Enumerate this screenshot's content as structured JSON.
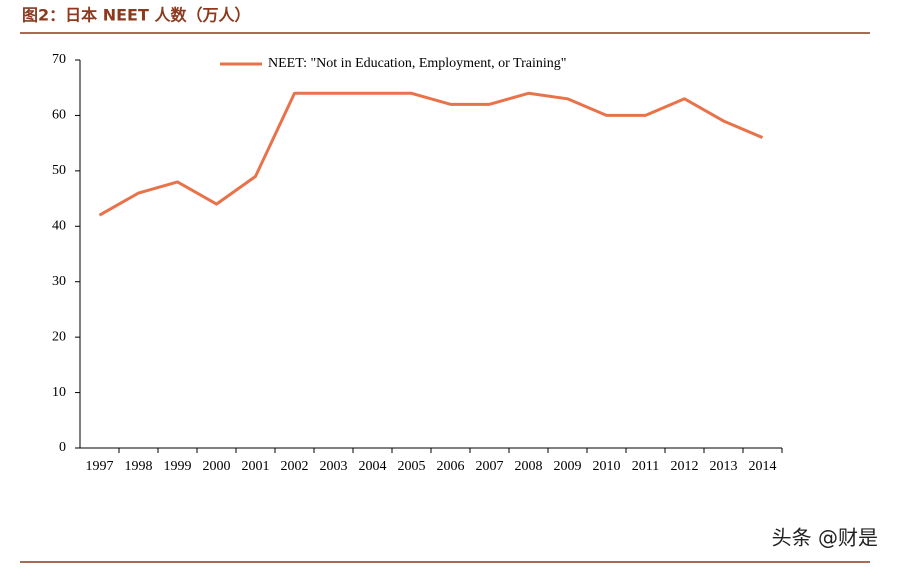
{
  "chart_data": {
    "type": "line",
    "title": "图2：日本 NEET 人数（万人）",
    "categories": [
      "1997",
      "1998",
      "1999",
      "2000",
      "2001",
      "2002",
      "2003",
      "2004",
      "2005",
      "2006",
      "2007",
      "2008",
      "2009",
      "2010",
      "2011",
      "2012",
      "2013",
      "2014"
    ],
    "series": [
      {
        "name": "NEET: \"Not in Education, Employment, or Training\"",
        "color": "#e8734a",
        "values": [
          42,
          46,
          48,
          44,
          49,
          64,
          64,
          64,
          64,
          62,
          62,
          64,
          63,
          60,
          60,
          63,
          59,
          56
        ]
      }
    ],
    "ylim": [
      0,
      70
    ],
    "yticks": [
      0,
      10,
      20,
      30,
      40,
      50,
      60,
      70
    ],
    "grid": false,
    "legend": "top"
  },
  "watermark": "头条 @财是"
}
